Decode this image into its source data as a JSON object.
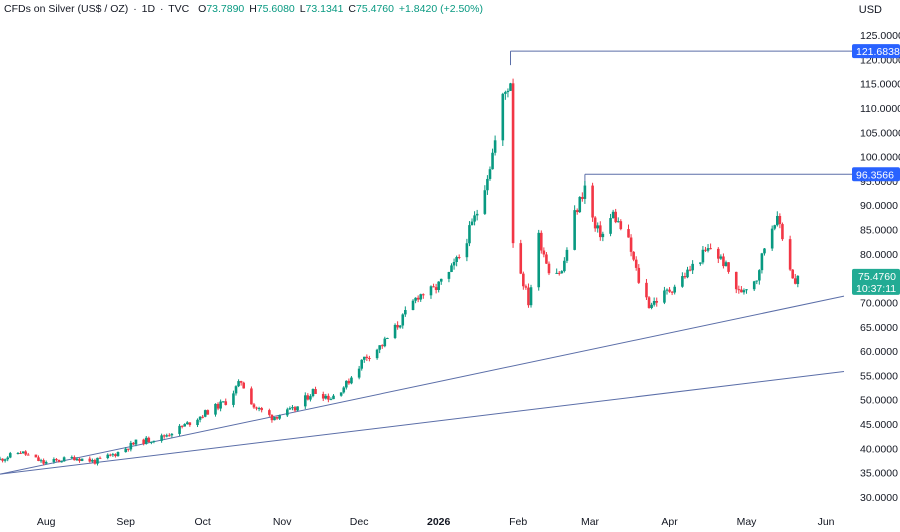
{
  "header": {
    "symbol": "CFDs on Silver (US$ / OZ)",
    "interval": "1D",
    "source": "TVC",
    "open_label": "O",
    "open": "73.7890",
    "high_label": "H",
    "high": "75.6080",
    "low_label": "L",
    "low": "73.1341",
    "close_label": "C",
    "close": "75.4760",
    "change": "+1.8420 (+2.50%)"
  },
  "currency": "USD",
  "colors": {
    "up": "#089981",
    "down": "#f23645",
    "line": "#5b6ea8",
    "badge_blue": "#2962ff",
    "badge_green": "#22ab94"
  },
  "chart_data": {
    "type": "candlestick",
    "title": "CFDs on Silver (US$ / OZ)",
    "ylim": [
      30,
      125
    ],
    "y_ticks": [
      "30.0000",
      "35.0000",
      "40.0000",
      "45.0000",
      "50.0000",
      "55.0000",
      "60.0000",
      "65.0000",
      "70.0000",
      "75.0000",
      "80.0000",
      "85.0000",
      "90.0000",
      "95.0000",
      "100.0000",
      "105.0000",
      "110.0000",
      "115.0000",
      "120.0000",
      "125.0000"
    ],
    "x_ticks": [
      {
        "label": "Aug",
        "date": "2025-08-01"
      },
      {
        "label": "Sep",
        "date": "2025-09-01"
      },
      {
        "label": "Oct",
        "date": "2025-10-01"
      },
      {
        "label": "Nov",
        "date": "2025-11-01"
      },
      {
        "label": "Dec",
        "date": "2025-12-01"
      },
      {
        "label": "2026",
        "date": "2026-01-01",
        "bold": true
      },
      {
        "label": "Feb",
        "date": "2026-02-01"
      },
      {
        "label": "Mar",
        "date": "2026-03-01"
      },
      {
        "label": "Apr",
        "date": "2026-04-01"
      },
      {
        "label": "May",
        "date": "2026-05-01"
      },
      {
        "label": "Jun",
        "date": "2026-06-01"
      }
    ],
    "x_range": [
      "2025-07-14",
      "2026-06-08"
    ],
    "anchors": [
      {
        "date": "2025-07-14",
        "close": 37.7
      },
      {
        "date": "2025-07-22",
        "close": 39.3
      },
      {
        "date": "2025-07-31",
        "close": 37.0
      },
      {
        "date": "2025-08-12",
        "close": 38.1
      },
      {
        "date": "2025-08-20",
        "close": 37.3
      },
      {
        "date": "2025-08-28",
        "close": 38.9
      },
      {
        "date": "2025-09-05",
        "close": 41.2
      },
      {
        "date": "2025-09-15",
        "close": 42.3
      },
      {
        "date": "2025-09-25",
        "close": 45.0
      },
      {
        "date": "2025-10-03",
        "close": 47.6
      },
      {
        "date": "2025-10-10",
        "close": 49.6
      },
      {
        "date": "2025-10-16",
        "close": 53.8
      },
      {
        "date": "2025-10-21",
        "close": 48.6
      },
      {
        "date": "2025-10-28",
        "close": 46.4
      },
      {
        "date": "2025-11-06",
        "close": 48.0
      },
      {
        "date": "2025-11-13",
        "close": 51.8
      },
      {
        "date": "2025-11-20",
        "close": 50.4
      },
      {
        "date": "2025-11-26",
        "close": 53.2
      },
      {
        "date": "2025-12-03",
        "close": 58.6
      },
      {
        "date": "2025-12-10",
        "close": 61.3
      },
      {
        "date": "2025-12-17",
        "close": 66.0
      },
      {
        "date": "2025-12-24",
        "close": 71.5
      },
      {
        "date": "2025-12-30",
        "close": 72.5
      },
      {
        "date": "2026-01-05",
        "close": 75.8
      },
      {
        "date": "2026-01-09",
        "close": 79.4
      },
      {
        "date": "2026-01-16",
        "close": 88.6
      },
      {
        "date": "2026-01-21",
        "close": 98.3
      },
      {
        "date": "2026-01-23",
        "close": 103.1
      },
      {
        "date": "2026-01-26",
        "close": 112.0
      },
      {
        "date": "2026-01-29",
        "close": 115.7
      },
      {
        "date": "2026-01-30",
        "close": 82.9
      },
      {
        "date": "2026-02-02",
        "close": 76.3
      },
      {
        "date": "2026-02-05",
        "close": 70.1
      },
      {
        "date": "2026-02-09",
        "close": 83.5
      },
      {
        "date": "2026-02-13",
        "close": 77.0
      },
      {
        "date": "2026-02-18",
        "close": 76.2
      },
      {
        "date": "2026-02-23",
        "close": 88.0
      },
      {
        "date": "2026-02-27",
        "close": 93.8
      },
      {
        "date": "2026-03-03",
        "close": 85.0
      },
      {
        "date": "2026-03-06",
        "close": 84.0
      },
      {
        "date": "2026-03-10",
        "close": 88.2
      },
      {
        "date": "2026-03-16",
        "close": 82.4
      },
      {
        "date": "2026-03-20",
        "close": 74.5
      },
      {
        "date": "2026-03-24",
        "close": 69.6
      },
      {
        "date": "2026-03-27",
        "close": 70.5
      },
      {
        "date": "2026-04-02",
        "close": 73.0
      },
      {
        "date": "2026-04-08",
        "close": 76.2
      },
      {
        "date": "2026-04-14",
        "close": 79.8
      },
      {
        "date": "2026-04-17",
        "close": 81.2
      },
      {
        "date": "2026-04-22",
        "close": 78.3
      },
      {
        "date": "2026-04-28",
        "close": 72.0
      },
      {
        "date": "2026-05-01",
        "close": 73.5
      },
      {
        "date": "2026-05-05",
        "close": 75.2
      },
      {
        "date": "2026-05-08",
        "close": 81.5
      },
      {
        "date": "2026-05-12",
        "close": 87.2
      },
      {
        "date": "2026-05-14",
        "close": 86.0
      },
      {
        "date": "2026-05-18",
        "close": 77.2
      },
      {
        "date": "2026-05-20",
        "close": 73.6
      },
      {
        "date": "2026-05-21",
        "close": 75.476
      }
    ],
    "horizontal_levels": [
      {
        "label": "121.6838",
        "value": 121.6838,
        "start_date": "2026-01-29",
        "color": "#2962ff"
      },
      {
        "label": "96.3566",
        "value": 96.3566,
        "start_date": "2026-02-27",
        "color": "#2962ff"
      }
    ],
    "last_price": {
      "label": "75.4760",
      "value": 75.476,
      "countdown": "10:37:11",
      "color": "#22ab94"
    },
    "trendlines": [
      {
        "start": {
          "date": "2025-07-14",
          "value": 34.7
        },
        "end": {
          "date": "2026-06-08",
          "value": 71.3
        }
      },
      {
        "start": {
          "date": "2025-07-14",
          "value": 34.7
        },
        "end": {
          "date": "2026-06-08",
          "value": 55.8
        }
      }
    ]
  }
}
